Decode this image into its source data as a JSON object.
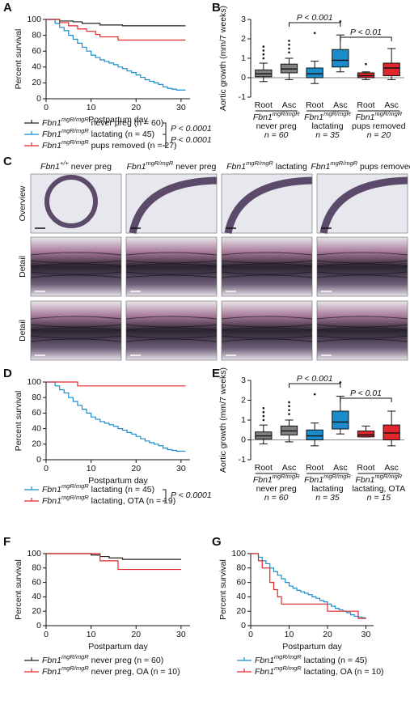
{
  "chart_data": [
    {
      "type": "survival",
      "panel": "A",
      "xlabel": "Postpartum day",
      "ylabel": "Percent survival",
      "xlim": [
        0,
        32
      ],
      "xticks": [
        0,
        10,
        20,
        30
      ],
      "ylim": [
        0,
        100
      ],
      "yticks": [
        0,
        20,
        40,
        60,
        80,
        100
      ],
      "series": [
        {
          "name": "Fbn1mgR/mgR never preg (n = 60)",
          "color": "#231f20",
          "x": [
            0,
            3,
            6,
            8,
            12,
            17,
            31
          ],
          "values": [
            100,
            98,
            97,
            95,
            93,
            92,
            92
          ]
        },
        {
          "name": "Fbn1mgR/mgR lactating (n = 45)",
          "color": "#1a8ccc",
          "x": [
            0,
            2,
            3,
            4,
            5,
            6,
            7,
            8,
            9,
            10,
            11,
            12,
            13,
            14,
            15,
            16,
            17,
            18,
            19,
            20,
            21,
            22,
            23,
            24,
            25,
            26,
            27,
            28,
            29,
            31
          ],
          "values": [
            100,
            95,
            90,
            86,
            80,
            75,
            70,
            65,
            60,
            55,
            52,
            49,
            47,
            45,
            43,
            40,
            38,
            35,
            33,
            30,
            27,
            24,
            22,
            20,
            18,
            15,
            13,
            12,
            11,
            11
          ]
        },
        {
          "name": "Fbn1mgR/mgR pups removed (n = 27)",
          "color": "#e0262b",
          "x": [
            0,
            3,
            5,
            7,
            9,
            11,
            12,
            16,
            31
          ],
          "values": [
            100,
            96,
            92,
            88,
            85,
            81,
            78,
            74,
            74
          ]
        }
      ],
      "annotations": [
        "P < 0.0001",
        "P < 0.0001"
      ]
    },
    {
      "type": "box",
      "panel": "B",
      "ylabel": "Aortic growth (mm/7 weeks)",
      "ylim": [
        -1,
        3
      ],
      "yticks": [
        -1,
        0,
        1,
        2,
        3
      ],
      "categories": [
        "Root",
        "Asc",
        "Root",
        "Asc",
        "Root",
        "Asc"
      ],
      "groups": [
        {
          "label_lines": [
            "Fbn1mgR/mgR",
            "never preg"
          ],
          "n": "n = 60",
          "color": "#808080"
        },
        {
          "label_lines": [
            "Fbn1mgR/mgR",
            "lactating"
          ],
          "n": "n = 35",
          "color": "#1a8ccc"
        },
        {
          "label_lines": [
            "Fbn1mgR/mgR",
            "pups removed"
          ],
          "n": "n = 20",
          "color": "#e0262b"
        }
      ],
      "boxes": [
        {
          "whislo": -0.2,
          "q1": 0.05,
          "med": 0.2,
          "q3": 0.4,
          "whishi": 0.75,
          "fliers": [
            1.0,
            1.2,
            1.4,
            1.6
          ]
        },
        {
          "whislo": -0.1,
          "q1": 0.25,
          "med": 0.45,
          "q3": 0.7,
          "whishi": 1.0,
          "fliers": [
            1.3,
            1.5,
            1.7,
            1.9
          ]
        },
        {
          "whislo": -0.3,
          "q1": 0.0,
          "med": 0.2,
          "q3": 0.5,
          "whishi": 0.85,
          "fliers": [
            2.3
          ]
        },
        {
          "whislo": 0.3,
          "q1": 0.55,
          "med": 0.9,
          "q3": 1.45,
          "whishi": 2.2,
          "fliers": [
            2.9
          ]
        },
        {
          "whislo": -0.1,
          "q1": 0.0,
          "med": 0.1,
          "q3": 0.25,
          "whishi": 0.3,
          "fliers": [
            0.7
          ]
        },
        {
          "whislo": -0.1,
          "q1": 0.1,
          "med": 0.5,
          "q3": 0.75,
          "whishi": 1.5,
          "fliers": []
        }
      ],
      "annotations": [
        "P < 0.001",
        "P < 0.01"
      ]
    },
    {
      "type": "survival",
      "panel": "D",
      "xlabel": "Postpartum day",
      "ylabel": "Percent survival",
      "xlim": [
        0,
        32
      ],
      "xticks": [
        0,
        10,
        20,
        30
      ],
      "ylim": [
        0,
        100
      ],
      "yticks": [
        0,
        20,
        40,
        60,
        80,
        100
      ],
      "series": [
        {
          "name": "Fbn1mgR/mgR lactating (n = 45)",
          "color": "#1a8ccc",
          "x": [
            0,
            2,
            3,
            4,
            5,
            6,
            7,
            8,
            9,
            10,
            11,
            12,
            13,
            14,
            15,
            16,
            17,
            18,
            19,
            20,
            21,
            22,
            23,
            24,
            25,
            26,
            27,
            28,
            29,
            31
          ],
          "values": [
            100,
            95,
            90,
            86,
            80,
            75,
            70,
            65,
            60,
            55,
            52,
            49,
            47,
            45,
            43,
            40,
            38,
            35,
            33,
            30,
            27,
            24,
            22,
            20,
            18,
            15,
            13,
            12,
            11,
            11
          ]
        },
        {
          "name": "Fbn1mgR/mgR lactating, OTA (n = 19)",
          "color": "#e0262b",
          "x": [
            0,
            7,
            31
          ],
          "values": [
            100,
            95,
            95
          ]
        }
      ],
      "annotations": [
        "P < 0.0001"
      ]
    },
    {
      "type": "box",
      "panel": "E",
      "ylabel": "Aortic growth (mm/7 weeks)",
      "ylim": [
        -1,
        3
      ],
      "yticks": [
        -1,
        0,
        1,
        2,
        3
      ],
      "categories": [
        "Root",
        "Asc",
        "Root",
        "Asc",
        "Root",
        "Asc"
      ],
      "groups": [
        {
          "label_lines": [
            "Fbn1mgR/mgR",
            "never preg"
          ],
          "n": "n = 60",
          "color": "#808080"
        },
        {
          "label_lines": [
            "Fbn1mgR/mgR",
            "lactating"
          ],
          "n": "n = 35",
          "color": "#1a8ccc"
        },
        {
          "label_lines": [
            "Fbn1mgR/mgR",
            "lactating, OTA"
          ],
          "n": "n = 15",
          "color": "#e0262b"
        }
      ],
      "boxes": [
        {
          "whislo": -0.2,
          "q1": 0.05,
          "med": 0.2,
          "q3": 0.4,
          "whishi": 0.75,
          "fliers": [
            1.0,
            1.2,
            1.4,
            1.6
          ]
        },
        {
          "whislo": -0.1,
          "q1": 0.25,
          "med": 0.45,
          "q3": 0.7,
          "whishi": 1.0,
          "fliers": [
            1.3,
            1.5,
            1.7,
            1.9
          ]
        },
        {
          "whislo": -0.3,
          "q1": 0.0,
          "med": 0.2,
          "q3": 0.5,
          "whishi": 0.85,
          "fliers": [
            2.3
          ]
        },
        {
          "whislo": 0.3,
          "q1": 0.55,
          "med": 0.9,
          "q3": 1.45,
          "whishi": 2.2,
          "fliers": [
            2.9
          ]
        },
        {
          "whislo": 0.15,
          "q1": 0.15,
          "med": 0.25,
          "q3": 0.45,
          "whishi": 0.7,
          "fliers": []
        },
        {
          "whislo": -0.3,
          "q1": 0.0,
          "med": 0.35,
          "q3": 0.75,
          "whishi": 1.45,
          "fliers": []
        }
      ],
      "annotations": [
        "P < 0.001",
        "P < 0.01"
      ]
    },
    {
      "type": "survival",
      "panel": "F",
      "xlabel": "Postpartum day",
      "ylabel": "Percent survival",
      "xlim": [
        0,
        32
      ],
      "xticks": [
        0,
        10,
        20,
        30
      ],
      "ylim": [
        0,
        100
      ],
      "yticks": [
        0,
        20,
        40,
        60,
        80,
        100
      ],
      "series": [
        {
          "name": "Fbn1mgR/mgR never preg (n = 60)",
          "color": "#231f20",
          "x": [
            0,
            10,
            12,
            14,
            17,
            30
          ],
          "values": [
            100,
            98,
            96,
            94,
            92,
            92
          ]
        },
        {
          "name": "Fbn1mgR/mgR never preg, OA (n = 10)",
          "color": "#e0262b",
          "x": [
            0,
            12,
            16,
            30
          ],
          "values": [
            100,
            90,
            78,
            78
          ]
        }
      ]
    },
    {
      "type": "survival",
      "panel": "G",
      "xlabel": "Postpartum day",
      "ylabel": "Percent survival",
      "xlim": [
        0,
        32
      ],
      "xticks": [
        0,
        10,
        20,
        30
      ],
      "ylim": [
        0,
        100
      ],
      "yticks": [
        0,
        20,
        40,
        60,
        80,
        100
      ],
      "series": [
        {
          "name": "Fbn1mgR/mgR lactating (n = 45)",
          "color": "#1a8ccc",
          "x": [
            0,
            2,
            3,
            4,
            5,
            6,
            7,
            8,
            9,
            10,
            11,
            12,
            13,
            14,
            15,
            16,
            17,
            18,
            19,
            20,
            21,
            22,
            23,
            24,
            25,
            26,
            27,
            28,
            29,
            30
          ],
          "values": [
            100,
            95,
            90,
            86,
            80,
            75,
            70,
            65,
            60,
            55,
            52,
            49,
            47,
            45,
            43,
            40,
            38,
            35,
            33,
            30,
            27,
            24,
            22,
            20,
            18,
            15,
            13,
            12,
            11,
            11
          ]
        },
        {
          "name": "Fbn1mgR/mgR lactating, OA (n = 10)",
          "color": "#e0262b",
          "x": [
            0,
            2,
            3,
            5,
            6,
            7,
            8,
            20,
            28,
            30
          ],
          "values": [
            100,
            90,
            80,
            60,
            50,
            40,
            30,
            20,
            10,
            10
          ]
        }
      ]
    }
  ],
  "histology": {
    "panel": "C",
    "columns": [
      "Fbn1+/+ never preg",
      "Fbn1mgR/mgR never preg",
      "Fbn1mgR/mgR lactating",
      "Fbn1mgR/mgR pups removed"
    ],
    "rows": [
      "Overview",
      "Detail",
      "Detail"
    ]
  }
}
